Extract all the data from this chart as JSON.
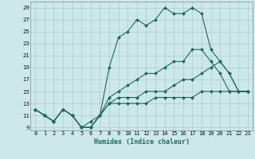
{
  "xlabel": "Humidex (Indice chaleur)",
  "x_ticks": [
    0,
    1,
    2,
    3,
    4,
    5,
    6,
    7,
    8,
    9,
    10,
    11,
    12,
    13,
    14,
    15,
    16,
    17,
    18,
    19,
    20,
    21,
    22,
    23
  ],
  "xlim": [
    -0.5,
    23.5
  ],
  "ylim": [
    8.5,
    30
  ],
  "y_ticks": [
    9,
    11,
    13,
    15,
    17,
    19,
    21,
    23,
    25,
    27,
    29
  ],
  "bg_color": "#cce8e8",
  "grid_color": "#aacccc",
  "line_color": "#1a6b5a",
  "series": [
    [
      12,
      11,
      10,
      12,
      11,
      9,
      10,
      11,
      19,
      24,
      25,
      27,
      26,
      27,
      29,
      28,
      28,
      29,
      28,
      22,
      20,
      18,
      15,
      15
    ],
    [
      12,
      11,
      10,
      12,
      11,
      9,
      9,
      11,
      14,
      15,
      16,
      17,
      18,
      18,
      19,
      20,
      20,
      22,
      22,
      20,
      18,
      15,
      15,
      15
    ],
    [
      12,
      11,
      10,
      12,
      11,
      9,
      9,
      11,
      13,
      14,
      14,
      14,
      15,
      15,
      15,
      16,
      17,
      17,
      18,
      19,
      20,
      18,
      15,
      15
    ],
    [
      12,
      11,
      10,
      12,
      11,
      9,
      9,
      11,
      13,
      13,
      13,
      13,
      13,
      14,
      14,
      14,
      14,
      14,
      15,
      15,
      15,
      15,
      15,
      15
    ]
  ],
  "marker": "D",
  "markersize": 2.0,
  "linewidth": 0.8,
  "xlabel_fontsize": 6.0,
  "tick_fontsize": 5.0
}
